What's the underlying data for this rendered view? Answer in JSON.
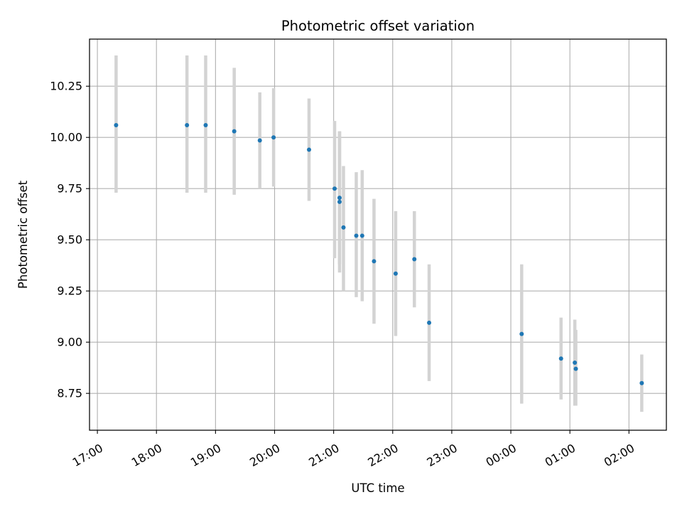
{
  "chart_data": {
    "type": "scatter",
    "title": "Photometric offset variation",
    "xlabel": "UTC time",
    "ylabel": "Photometric offset",
    "grid": true,
    "xlim": [
      "2000-01-01T16:52",
      "2000-01-02T02:38"
    ],
    "ylim": [
      8.57,
      10.48
    ],
    "x_ticks": [
      {
        "t": "2000-01-01T17:00",
        "label": "17:00"
      },
      {
        "t": "2000-01-01T18:00",
        "label": "18:00"
      },
      {
        "t": "2000-01-01T19:00",
        "label": "19:00"
      },
      {
        "t": "2000-01-01T20:00",
        "label": "20:00"
      },
      {
        "t": "2000-01-01T21:00",
        "label": "21:00"
      },
      {
        "t": "2000-01-01T22:00",
        "label": "22:00"
      },
      {
        "t": "2000-01-01T23:00",
        "label": "23:00"
      },
      {
        "t": "2000-01-02T00:00",
        "label": "00:00"
      },
      {
        "t": "2000-01-02T01:00",
        "label": "01:00"
      },
      {
        "t": "2000-01-02T02:00",
        "label": "02:00"
      }
    ],
    "y_ticks": [
      {
        "v": 8.75,
        "label": "8.75"
      },
      {
        "v": 9.0,
        "label": "9.00"
      },
      {
        "v": 9.25,
        "label": "9.25"
      },
      {
        "v": 9.5,
        "label": "9.50"
      },
      {
        "v": 9.75,
        "label": "9.75"
      },
      {
        "v": 10.0,
        "label": "10.00"
      },
      {
        "v": 10.25,
        "label": "10.25"
      }
    ],
    "points": [
      {
        "t": "2000-01-01T17:19",
        "y": 10.06,
        "lo": 9.73,
        "hi": 10.4
      },
      {
        "t": "2000-01-01T18:31",
        "y": 10.06,
        "lo": 9.73,
        "hi": 10.4
      },
      {
        "t": "2000-01-01T18:50",
        "y": 10.06,
        "lo": 9.73,
        "hi": 10.4
      },
      {
        "t": "2000-01-01T19:19",
        "y": 10.03,
        "lo": 9.72,
        "hi": 10.34
      },
      {
        "t": "2000-01-01T19:45",
        "y": 9.985,
        "lo": 9.75,
        "hi": 10.22
      },
      {
        "t": "2000-01-01T19:59",
        "y": 10.0,
        "lo": 9.76,
        "hi": 10.24
      },
      {
        "t": "2000-01-01T20:35",
        "y": 9.94,
        "lo": 9.69,
        "hi": 10.19
      },
      {
        "t": "2000-01-01T21:01",
        "y": 9.75,
        "lo": 9.41,
        "hi": 10.08
      },
      {
        "t": "2000-01-01T21:06",
        "y": 9.705,
        "lo": 9.38,
        "hi": 10.03
      },
      {
        "t": "2000-01-01T21:06",
        "y": 9.685,
        "lo": 9.34,
        "hi": 10.03
      },
      {
        "t": "2000-01-01T21:10",
        "y": 9.56,
        "lo": 9.25,
        "hi": 9.86
      },
      {
        "t": "2000-01-01T21:23",
        "y": 9.52,
        "lo": 9.22,
        "hi": 9.83
      },
      {
        "t": "2000-01-01T21:29",
        "y": 9.52,
        "lo": 9.2,
        "hi": 9.84
      },
      {
        "t": "2000-01-01T21:41",
        "y": 9.395,
        "lo": 9.09,
        "hi": 9.7
      },
      {
        "t": "2000-01-01T22:03",
        "y": 9.335,
        "lo": 9.03,
        "hi": 9.64
      },
      {
        "t": "2000-01-01T22:22",
        "y": 9.405,
        "lo": 9.17,
        "hi": 9.64
      },
      {
        "t": "2000-01-01T22:37",
        "y": 9.095,
        "lo": 8.81,
        "hi": 9.38
      },
      {
        "t": "2000-01-02T00:11",
        "y": 9.04,
        "lo": 8.7,
        "hi": 9.38
      },
      {
        "t": "2000-01-02T00:51",
        "y": 8.92,
        "lo": 8.72,
        "hi": 9.12
      },
      {
        "t": "2000-01-02T01:05",
        "y": 8.9,
        "lo": 8.69,
        "hi": 9.11
      },
      {
        "t": "2000-01-02T01:06",
        "y": 8.87,
        "lo": 8.69,
        "hi": 9.06
      },
      {
        "t": "2000-01-02T02:13",
        "y": 8.8,
        "lo": 8.66,
        "hi": 8.94
      }
    ],
    "colors": {
      "marker": "#1f77b4",
      "errorbar": "#d3d3d3",
      "grid": "#b0b0b0",
      "axes": "#000000"
    }
  }
}
